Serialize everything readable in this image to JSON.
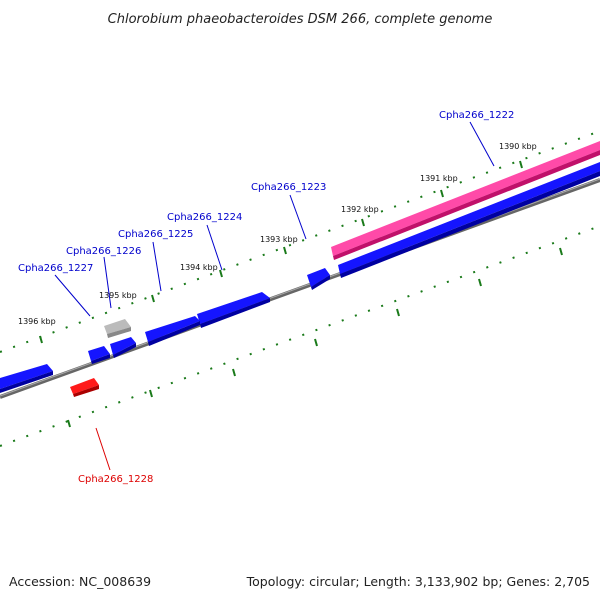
{
  "title": "Chlorobium phaeobacteroides DSM 266, complete genome",
  "footer": {
    "accession": "Accession: NC_008639",
    "summary": "Topology: circular; Length: 3,133,902 bp; Genes: 2,705"
  },
  "scale_labels": [
    "1390 kbp",
    "1391 kbp",
    "1392 kbp",
    "1393 kbp",
    "1394 kbp",
    "1395 kbp",
    "1396 kbp"
  ],
  "genes": [
    {
      "id": "Cpha266_1222",
      "strand": "plus",
      "color": "#ff3399",
      "kind": "highlight"
    },
    {
      "id": "Cpha266_1223",
      "strand": "minus",
      "color": "#0000ee",
      "kind": "cds"
    },
    {
      "id": "Cpha266_1224",
      "strand": "minus",
      "color": "#0000ee",
      "kind": "cds"
    },
    {
      "id": "Cpha266_1225",
      "strand": "minus",
      "color": "#0000ee",
      "kind": "cds"
    },
    {
      "id": "Cpha266_1226",
      "strand": "minus",
      "color": "#0000ee",
      "kind": "cds"
    },
    {
      "id": "Cpha266_1227",
      "strand": "minus",
      "color": "#aaaaaa",
      "kind": "other"
    },
    {
      "id": "Cpha266_1228",
      "strand": "complement",
      "color": "#ee0000",
      "kind": "cds"
    }
  ],
  "colors": {
    "label_blue": "#0000cc",
    "label_red": "#dd0000",
    "ticks": "#1a7a1a",
    "backbone": "#777777"
  }
}
